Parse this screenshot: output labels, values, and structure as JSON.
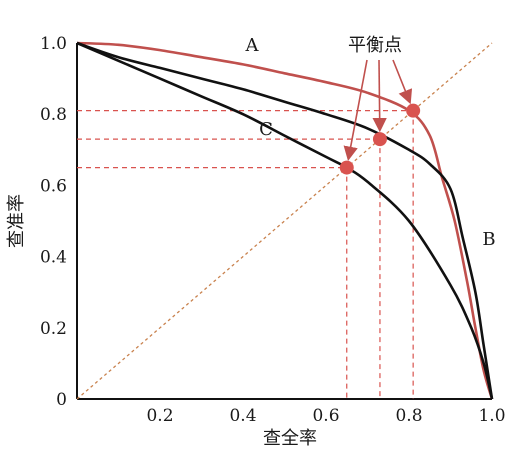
{
  "chart_data": {
    "type": "line",
    "xlabel": "查全率",
    "ylabel": "查准率",
    "xlim": [
      0,
      1
    ],
    "ylim": [
      0,
      1
    ],
    "x_ticks": [
      "0.2",
      "0.4",
      "0.6",
      "0.8",
      "1.0"
    ],
    "y_ticks": [
      "0",
      "0.2",
      "0.4",
      "0.6",
      "0.8",
      "1.0"
    ],
    "grid": false,
    "series": [
      {
        "name": "A",
        "color": "#c0504d",
        "x": [
          0,
          0.1,
          0.2,
          0.3,
          0.4,
          0.5,
          0.6,
          0.7,
          0.8,
          0.85,
          0.88,
          0.91,
          0.94,
          0.96,
          0.98,
          1.0
        ],
        "y": [
          1.0,
          0.995,
          0.98,
          0.96,
          0.94,
          0.915,
          0.89,
          0.86,
          0.81,
          0.74,
          0.62,
          0.5,
          0.33,
          0.2,
          0.08,
          0
        ]
      },
      {
        "name": "B",
        "color": "#111111",
        "x": [
          0,
          0.1,
          0.2,
          0.3,
          0.4,
          0.5,
          0.6,
          0.7,
          0.8,
          0.85,
          0.9,
          0.93,
          0.96,
          0.98,
          1.0
        ],
        "y": [
          1.0,
          0.96,
          0.93,
          0.9,
          0.87,
          0.835,
          0.8,
          0.76,
          0.7,
          0.66,
          0.59,
          0.45,
          0.3,
          0.15,
          0
        ]
      },
      {
        "name": "C",
        "color": "#111111",
        "x": [
          0,
          0.1,
          0.2,
          0.3,
          0.4,
          0.5,
          0.6,
          0.65,
          0.7,
          0.8,
          0.9,
          0.95,
          0.98,
          1.0
        ],
        "y": [
          1.0,
          0.95,
          0.9,
          0.85,
          0.8,
          0.74,
          0.68,
          0.65,
          0.61,
          0.5,
          0.32,
          0.2,
          0.1,
          0
        ]
      }
    ],
    "diagonal": {
      "x": [
        0,
        1
      ],
      "y": [
        0,
        1
      ],
      "color": "#c9824e"
    },
    "break_even_points": [
      {
        "x": 0.65,
        "y": 0.65,
        "color": "#d9534f"
      },
      {
        "x": 0.73,
        "y": 0.73,
        "color": "#d9534f"
      },
      {
        "x": 0.81,
        "y": 0.81,
        "color": "#d9534f"
      }
    ],
    "annotation": "平衡点"
  }
}
